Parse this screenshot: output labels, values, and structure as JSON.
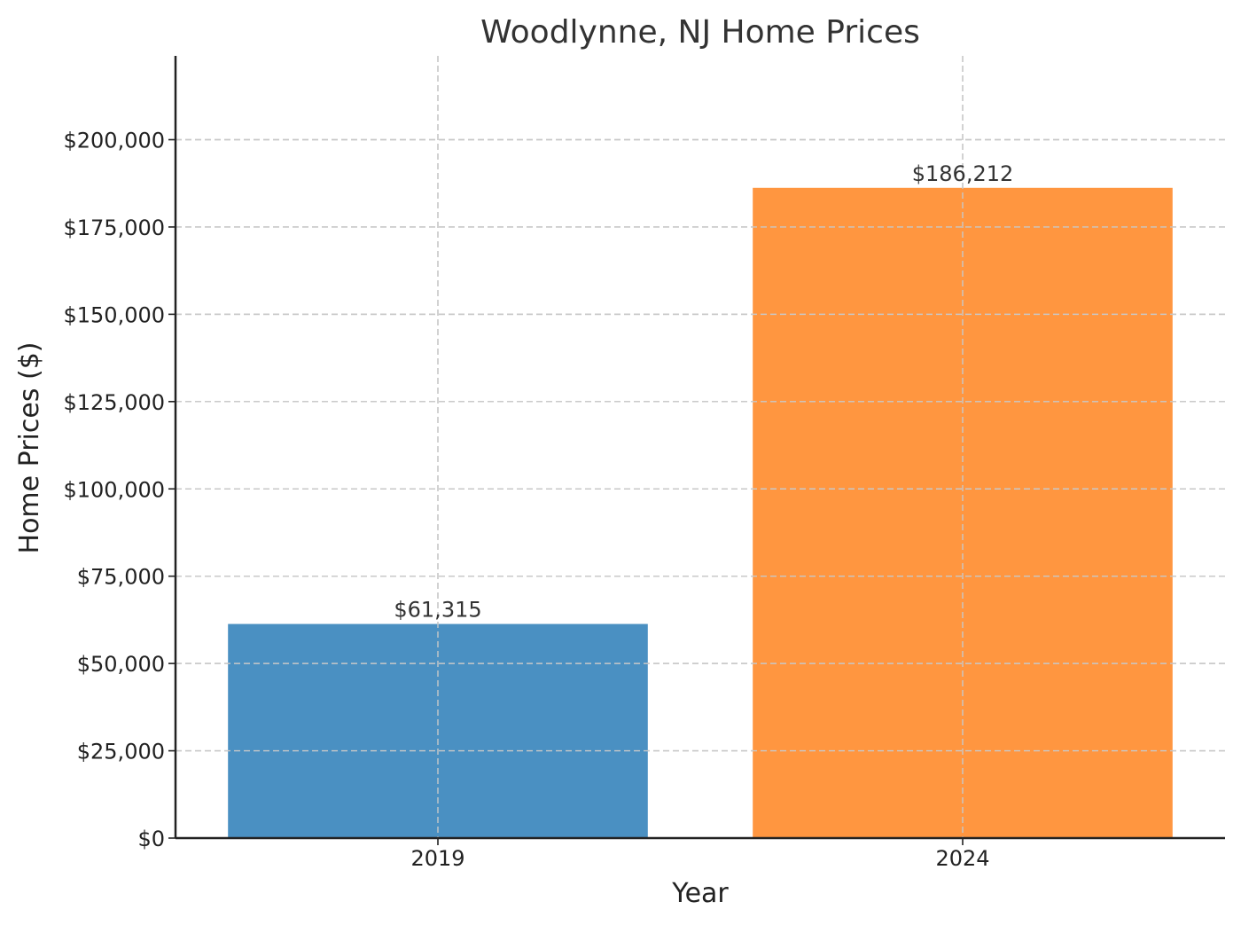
{
  "chart_data": {
    "type": "bar",
    "title": "Woodlynne, NJ Home Prices",
    "xlabel": "Year",
    "ylabel": "Home Prices ($)",
    "categories": [
      "2019",
      "2024"
    ],
    "values": [
      61315,
      186212
    ],
    "value_labels": [
      "$61,315",
      "$186,212"
    ],
    "colors": [
      "#4a90c2",
      "#ff9640"
    ],
    "ylim": [
      0,
      224000
    ],
    "yticks": [
      0,
      25000,
      50000,
      75000,
      100000,
      125000,
      150000,
      175000,
      200000
    ],
    "ytick_labels": [
      "$0",
      "$25,000",
      "$50,000",
      "$75,000",
      "$100,000",
      "$125,000",
      "$150,000",
      "$175,000",
      "$200,000"
    ],
    "grid": true,
    "legend": "none"
  }
}
